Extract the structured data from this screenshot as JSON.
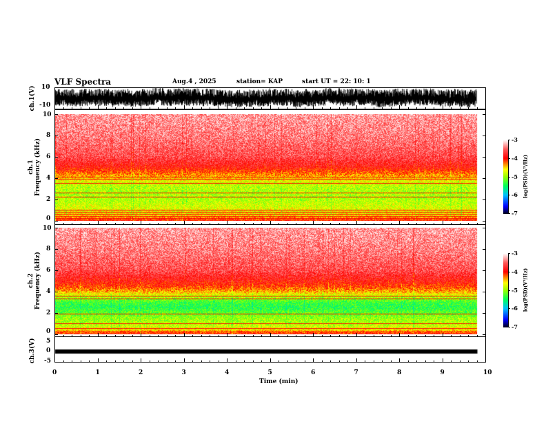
{
  "header": {
    "title": "VLF Spectra",
    "date": "Aug.4  , 2025",
    "station": "station= KAP",
    "start": "start  UT  =   22: 10: 1"
  },
  "chart_data": [
    {
      "type": "line",
      "name": "ch1-waveform",
      "ylabel": "ch.1(V)",
      "ylim": [
        -10,
        10
      ],
      "yticks": [
        "10",
        "-10"
      ],
      "xlim": [
        0,
        10
      ],
      "data_end_min": 9.8,
      "description_values": {
        "typical_min": -8,
        "typical_max": 9
      }
    },
    {
      "type": "heatmap",
      "name": "ch1-spectrogram",
      "ylabel": "ch.1\nFrequency  (kHz)",
      "ylabel_lines": [
        "ch.1",
        "Frequency  (kHz)"
      ],
      "ylim": [
        0,
        10
      ],
      "yticks": [
        "0",
        "2",
        "4",
        "6",
        "8",
        "10"
      ],
      "xlim": [
        0,
        10
      ],
      "data_end_min": 9.8,
      "freq_profile_khz": [
        0,
        0.5,
        1,
        1.5,
        2,
        2.5,
        3,
        3.5,
        4,
        4.5,
        5,
        6,
        8,
        10
      ],
      "median_log_psd": [
        -4.0,
        -4.6,
        -4.7,
        -4.8,
        -4.9,
        -4.9,
        -4.9,
        -4.8,
        -4.5,
        -4.2,
        -3.9,
        -3.6,
        -3.4,
        -3.3
      ],
      "line_freqs_khz": [
        0.2,
        0.4,
        0.6,
        0.8,
        1.0,
        2.2,
        2.6,
        3.5,
        3.9,
        4.1
      ],
      "colorbar": {
        "label": "log(PSD)(V²/Hz)",
        "range": [
          -7,
          -3
        ],
        "ticks": [
          "-3",
          "-4",
          "-5",
          "-6",
          "-7"
        ]
      }
    },
    {
      "type": "heatmap",
      "name": "ch2-spectrogram",
      "ylabel_lines": [
        "ch.2",
        "Frequency  (kHz)"
      ],
      "ylim": [
        0,
        10
      ],
      "yticks": [
        "0",
        "2",
        "4",
        "6",
        "8",
        "10"
      ],
      "xlim": [
        0,
        10
      ],
      "data_end_min": 9.8,
      "freq_profile_khz": [
        0,
        0.5,
        1,
        1.5,
        2,
        2.5,
        3,
        3.5,
        4,
        4.5,
        5,
        6,
        8,
        10
      ],
      "median_log_psd": [
        -4.0,
        -4.7,
        -4.9,
        -5.0,
        -5.2,
        -5.4,
        -5.3,
        -4.9,
        -4.4,
        -4.1,
        -3.9,
        -3.6,
        -3.4,
        -3.3
      ],
      "line_freqs_khz": [
        0.2,
        0.5,
        1.0,
        1.9,
        3.3,
        3.6
      ],
      "colorbar": {
        "label": "log(PSD)(V²/Hz)",
        "range": [
          -7,
          -3
        ],
        "ticks": [
          "-3",
          "-4",
          "-5",
          "-6",
          "-7"
        ]
      }
    },
    {
      "type": "line",
      "name": "ch3-waveform",
      "ylabel": "ch.3(V)",
      "ylim": [
        -5,
        5
      ],
      "yticks": [
        "5",
        "0",
        "-5"
      ],
      "xlim": [
        0,
        10
      ],
      "data_end_min": 9.8,
      "description_values": {
        "level": 0,
        "band_min": -0.3,
        "band_max": 0.3
      }
    }
  ],
  "xaxis": {
    "label": "Time  (min)",
    "ticks": [
      "0",
      "1",
      "2",
      "3",
      "4",
      "5",
      "6",
      "7",
      "8",
      "9",
      "10"
    ]
  }
}
